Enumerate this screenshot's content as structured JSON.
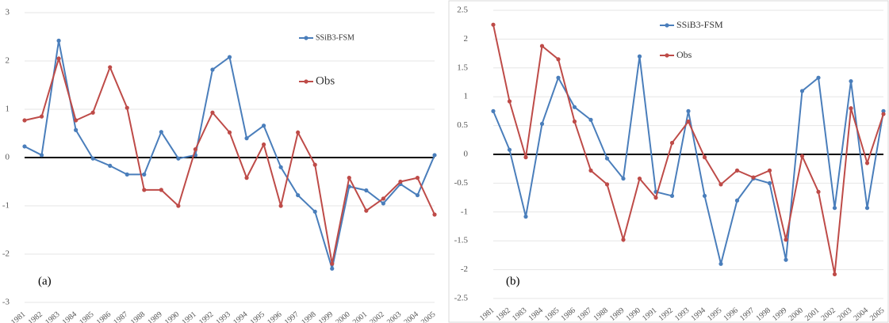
{
  "chart_data": [
    {
      "type": "line",
      "annotation": "(a)",
      "categories": [
        "1981",
        "1982",
        "1983",
        "1984",
        "1985",
        "1986",
        "1987",
        "1988",
        "1989",
        "1990",
        "1991",
        "1992",
        "1993",
        "1994",
        "1995",
        "1996",
        "1997",
        "1998",
        "1999",
        "2000",
        "2001",
        "2002",
        "2003",
        "2004",
        "2005"
      ],
      "series": [
        {
          "name": "SSiB3-FSM",
          "color": "#4a7ebb",
          "values": [
            0.23,
            0.05,
            2.42,
            0.57,
            -0.02,
            -0.17,
            -0.35,
            -0.35,
            0.53,
            -0.02,
            0.05,
            1.82,
            2.08,
            0.4,
            0.66,
            -0.2,
            -0.78,
            -1.12,
            -2.3,
            -0.6,
            -0.68,
            -0.95,
            -0.55,
            -0.78,
            0.05
          ]
        },
        {
          "name": "Obs",
          "color": "#be4b48",
          "values": [
            0.77,
            0.85,
            2.05,
            0.77,
            0.93,
            1.87,
            1.03,
            -0.67,
            -0.67,
            -1.0,
            0.17,
            0.93,
            0.52,
            -0.42,
            0.27,
            -1.0,
            0.52,
            -0.15,
            -2.2,
            -0.42,
            -1.1,
            -0.85,
            -0.5,
            -0.42,
            -1.18
          ]
        }
      ],
      "ylim": [
        -3,
        3
      ],
      "yticks": [
        -3,
        -2,
        -1,
        0,
        1,
        2,
        3
      ],
      "grid": true
    },
    {
      "type": "line",
      "annotation": "(b)",
      "categories": [
        "1981",
        "1982",
        "1983",
        "1984",
        "1985",
        "1986",
        "1987",
        "1988",
        "1989",
        "1990",
        "1991",
        "1992",
        "1993",
        "1994",
        "1995",
        "1996",
        "1997",
        "1998",
        "1999",
        "2000",
        "2001",
        "2002",
        "2003",
        "2004",
        "2005"
      ],
      "series": [
        {
          "name": "SSiB3-FSM",
          "color": "#4a7ebb",
          "values": [
            0.75,
            0.08,
            -1.08,
            0.53,
            1.33,
            0.82,
            0.6,
            -0.07,
            -0.42,
            1.7,
            -0.65,
            -0.72,
            0.75,
            -0.72,
            -1.9,
            -0.8,
            -0.42,
            -0.5,
            -1.83,
            1.1,
            1.33,
            -0.93,
            1.27,
            -0.93,
            0.75
          ]
        },
        {
          "name": "Obs",
          "color": "#be4b48",
          "values": [
            2.25,
            0.92,
            -0.05,
            1.88,
            1.65,
            0.57,
            -0.28,
            -0.52,
            -1.48,
            -0.42,
            -0.75,
            0.2,
            0.57,
            -0.05,
            -0.52,
            -0.28,
            -0.4,
            -0.28,
            -1.48,
            -0.03,
            -0.65,
            -2.08,
            0.8,
            -0.15,
            0.7
          ]
        }
      ],
      "ylim": [
        -2.5,
        2.5
      ],
      "yticks": [
        -2.5,
        -2,
        -1.5,
        -1,
        -0.5,
        0,
        0.5,
        1,
        1.5,
        2,
        2.5
      ],
      "grid": true
    }
  ]
}
